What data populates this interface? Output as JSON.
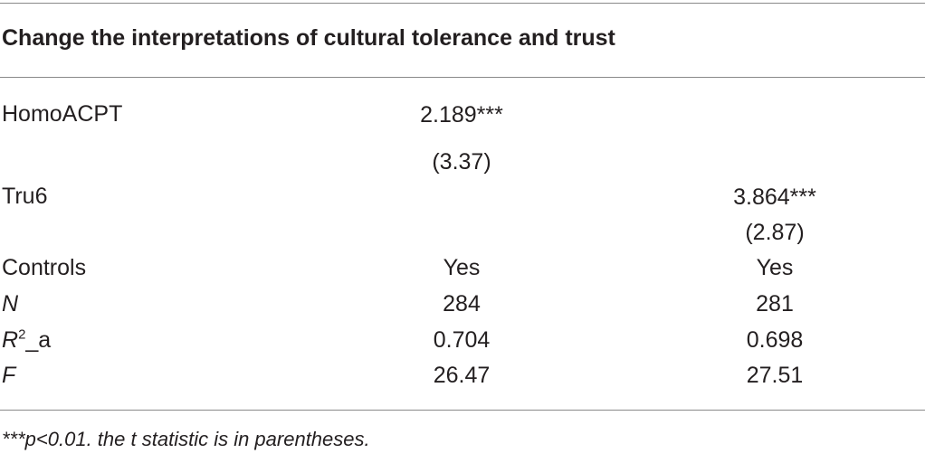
{
  "table": {
    "title": "Change the interpretations of cultural tolerance and trust",
    "rows": [
      {
        "label": "HomoACPT",
        "col1": "2.189***",
        "col2": ""
      },
      {
        "label": "",
        "col1": "(3.37)",
        "col2": ""
      },
      {
        "label": "Tru6",
        "col1": "",
        "col2": "3.864***"
      },
      {
        "label": "",
        "col1": "",
        "col2": "(2.87)"
      },
      {
        "label": "Controls",
        "col1": "Yes",
        "col2": "Yes"
      },
      {
        "label": "N",
        "col1": "284",
        "col2": "281"
      },
      {
        "label_main": "R",
        "label_sup": "2",
        "label_rest": "_a",
        "col1": "0.704",
        "col2": "0.698"
      },
      {
        "label": "F",
        "col1": "26.47",
        "col2": "27.51"
      }
    ],
    "note": "***p<0.01. the t statistic is in parentheses."
  }
}
